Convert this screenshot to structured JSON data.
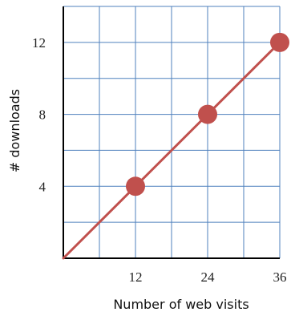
{
  "chart_data": {
    "type": "line",
    "title": "",
    "xlabel": "Number of web visits",
    "ylabel": "# downloads",
    "xlim": [
      0,
      36
    ],
    "ylim": [
      0,
      14
    ],
    "grid": true,
    "x_ticks": [
      12,
      24,
      36
    ],
    "y_ticks": [
      4,
      8,
      12
    ],
    "series": [
      {
        "points": [
          {
            "x": 0,
            "y": 0
          },
          {
            "x": 36,
            "y": 12
          }
        ],
        "markers": [
          {
            "x": 12,
            "y": 4
          },
          {
            "x": 24,
            "y": 8
          },
          {
            "x": 36,
            "y": 12
          }
        ],
        "color": "#c0504d"
      }
    ],
    "colors": {
      "grid": "#4f81bd",
      "axis": "#000000",
      "line": "#c0504d",
      "marker": "#c0504d"
    }
  }
}
